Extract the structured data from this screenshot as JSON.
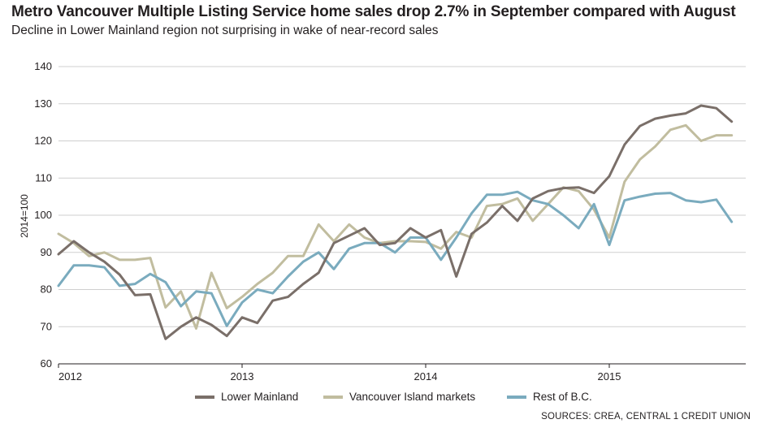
{
  "chart_data": {
    "type": "line",
    "title": "Metro Vancouver Multiple Listing Service home sales drop 2.7% in September compared with August",
    "subtitle": "Decline in Lower Mainland region not surprising in wake of near-record sales",
    "ylabel": "2014=100",
    "ylim": [
      60,
      140
    ],
    "yticks": [
      60,
      70,
      80,
      90,
      100,
      110,
      120,
      130,
      140
    ],
    "xticks": [
      "2012",
      "2013",
      "2014",
      "2015"
    ],
    "x_start": "2012-01",
    "grid": "horizontal",
    "legend_position": "bottom",
    "series": [
      {
        "name": "Lower Mainland",
        "color": "#7a6f69",
        "values": [
          89.5,
          93,
          90,
          87.5,
          84,
          78.5,
          78.7,
          66.7,
          70,
          72.5,
          70.5,
          67.5,
          72.5,
          71,
          77,
          78,
          81.5,
          84.5,
          92.5,
          94.5,
          96.5,
          92,
          92.5,
          96.5,
          94,
          96,
          83.5,
          95,
          98,
          102.5,
          98.5,
          104.5,
          106.5,
          107.3,
          107.5,
          106,
          110.5,
          119,
          124,
          126,
          126.8,
          127.4,
          129.5,
          128.8,
          125.2
        ]
      },
      {
        "name": "Vancouver Island markets",
        "color": "#c1bd9f",
        "values": [
          95,
          92.5,
          89,
          90,
          88,
          88,
          88.5,
          75.2,
          79.5,
          69.5,
          84.5,
          75,
          78,
          81.5,
          84.5,
          89,
          89,
          97.5,
          93,
          97.5,
          94,
          92.5,
          93,
          93,
          92.8,
          91,
          95.5,
          94,
          102.5,
          103,
          104.5,
          98.5,
          103,
          107.5,
          106.5,
          101.5,
          94,
          109,
          115,
          118.5,
          123,
          124.2,
          120,
          121.5,
          121.5
        ]
      },
      {
        "name": "Rest of B.C.",
        "color": "#7aabbe",
        "values": [
          81,
          86.5,
          86.5,
          86,
          81,
          81.5,
          84.2,
          82,
          75.5,
          79.5,
          79,
          70.2,
          76.5,
          80,
          79,
          83.5,
          87.5,
          90,
          85.5,
          91,
          92.5,
          92.5,
          90,
          94,
          94,
          88,
          94,
          100.5,
          105.5,
          105.5,
          106.3,
          104,
          103,
          100,
          96.5,
          103,
          92,
          104,
          105,
          105.8,
          106,
          104,
          103.5,
          104.2,
          98.2
        ]
      }
    ],
    "source": "SOURCES: CREA, CENTRAL 1 CREDIT UNION"
  }
}
